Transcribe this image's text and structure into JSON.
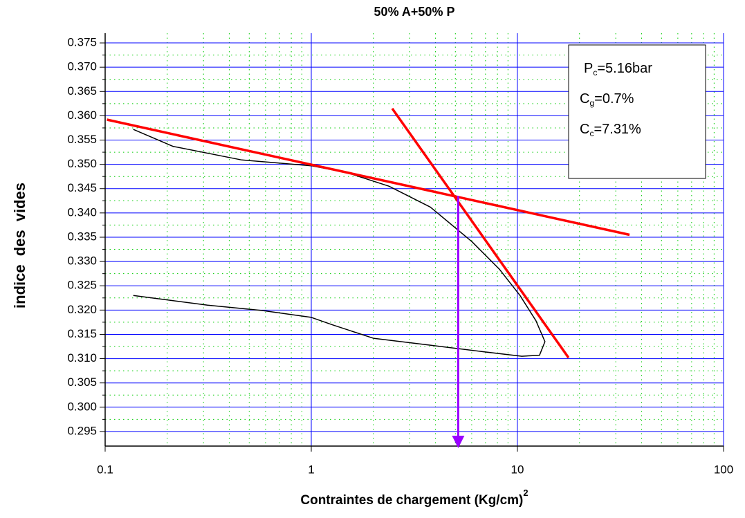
{
  "chart_data": {
    "type": "line",
    "title": "50% A+50% P",
    "x_label": "Contraintes de chargement (Kg/cm)",
    "x_label_sup": "2",
    "y_label": "indice des vides",
    "x_log": true,
    "xlim": [
      0.1,
      100
    ],
    "xticks": [
      0.1,
      1,
      10,
      100
    ],
    "ylim": [
      0.292,
      0.377
    ],
    "yticks": [
      {
        "value": 0.295,
        "label": "0.295"
      },
      {
        "value": 0.3,
        "label": "0.300"
      },
      {
        "value": 0.305,
        "label": "0.305"
      },
      {
        "value": 0.31,
        "label": "0.310"
      },
      {
        "value": 0.315,
        "label": "0.315"
      },
      {
        "value": 0.32,
        "label": "0.320"
      },
      {
        "value": 0.325,
        "label": "0.325"
      },
      {
        "value": 0.33,
        "label": "0.330"
      },
      {
        "value": 0.335,
        "label": "0.335"
      },
      {
        "value": 0.34,
        "label": "0.340"
      },
      {
        "value": 0.345,
        "label": "0.345"
      },
      {
        "value": 0.35,
        "label": "0.350"
      },
      {
        "value": 0.355,
        "label": "0.355"
      },
      {
        "value": 0.36,
        "label": "0.360"
      },
      {
        "value": 0.365,
        "label": "0.365"
      },
      {
        "value": 0.37,
        "label": "0.370"
      },
      {
        "value": 0.375,
        "label": "0.375"
      }
    ],
    "grid": true,
    "grid_color": "#0000ff",
    "minor_grid": true,
    "minor_grid_color": "#00cc00",
    "series": [
      {
        "color": "#000000",
        "width": 1.5,
        "x": [
          0.137,
          0.213,
          0.46,
          1,
          1.49,
          2.38,
          3.78,
          6.01,
          8.18,
          10.3,
          12.3,
          13.6,
          12.8,
          10.5,
          6.9,
          3.72,
          2.0,
          1.26,
          1,
          0.58,
          0.314,
          0.137
        ],
        "values": [
          0.3572,
          0.3537,
          0.3509,
          0.3497,
          0.3483,
          0.3455,
          0.3412,
          0.3341,
          0.3284,
          0.323,
          0.3178,
          0.3135,
          0.3107,
          0.3105,
          0.3114,
          0.3128,
          0.3142,
          0.317,
          0.3185,
          0.3199,
          0.321,
          0.323
        ]
      },
      {
        "color": "#ff0000",
        "width": 3.5,
        "x": [
          0.102,
          35
        ],
        "values": [
          0.3592,
          0.3355
        ]
      },
      {
        "color": "#ff0000",
        "width": 3.5,
        "x": [
          2.47,
          17.7
        ],
        "values": [
          0.3615,
          0.3102
        ]
      },
      {
        "color": "#9900ff",
        "width": 3,
        "arrow": true,
        "x": [
          5.16,
          5.16
        ],
        "values": [
          0.3435,
          0.292
        ]
      }
    ],
    "annotations": [
      {
        "text": "P",
        "sub": "c",
        "rest": "=5.16bar"
      },
      {
        "text": "C",
        "sub": "g",
        "rest": "=0.7%"
      },
      {
        "text": "C",
        "sub": "c",
        "rest": "=7.31%"
      }
    ]
  }
}
